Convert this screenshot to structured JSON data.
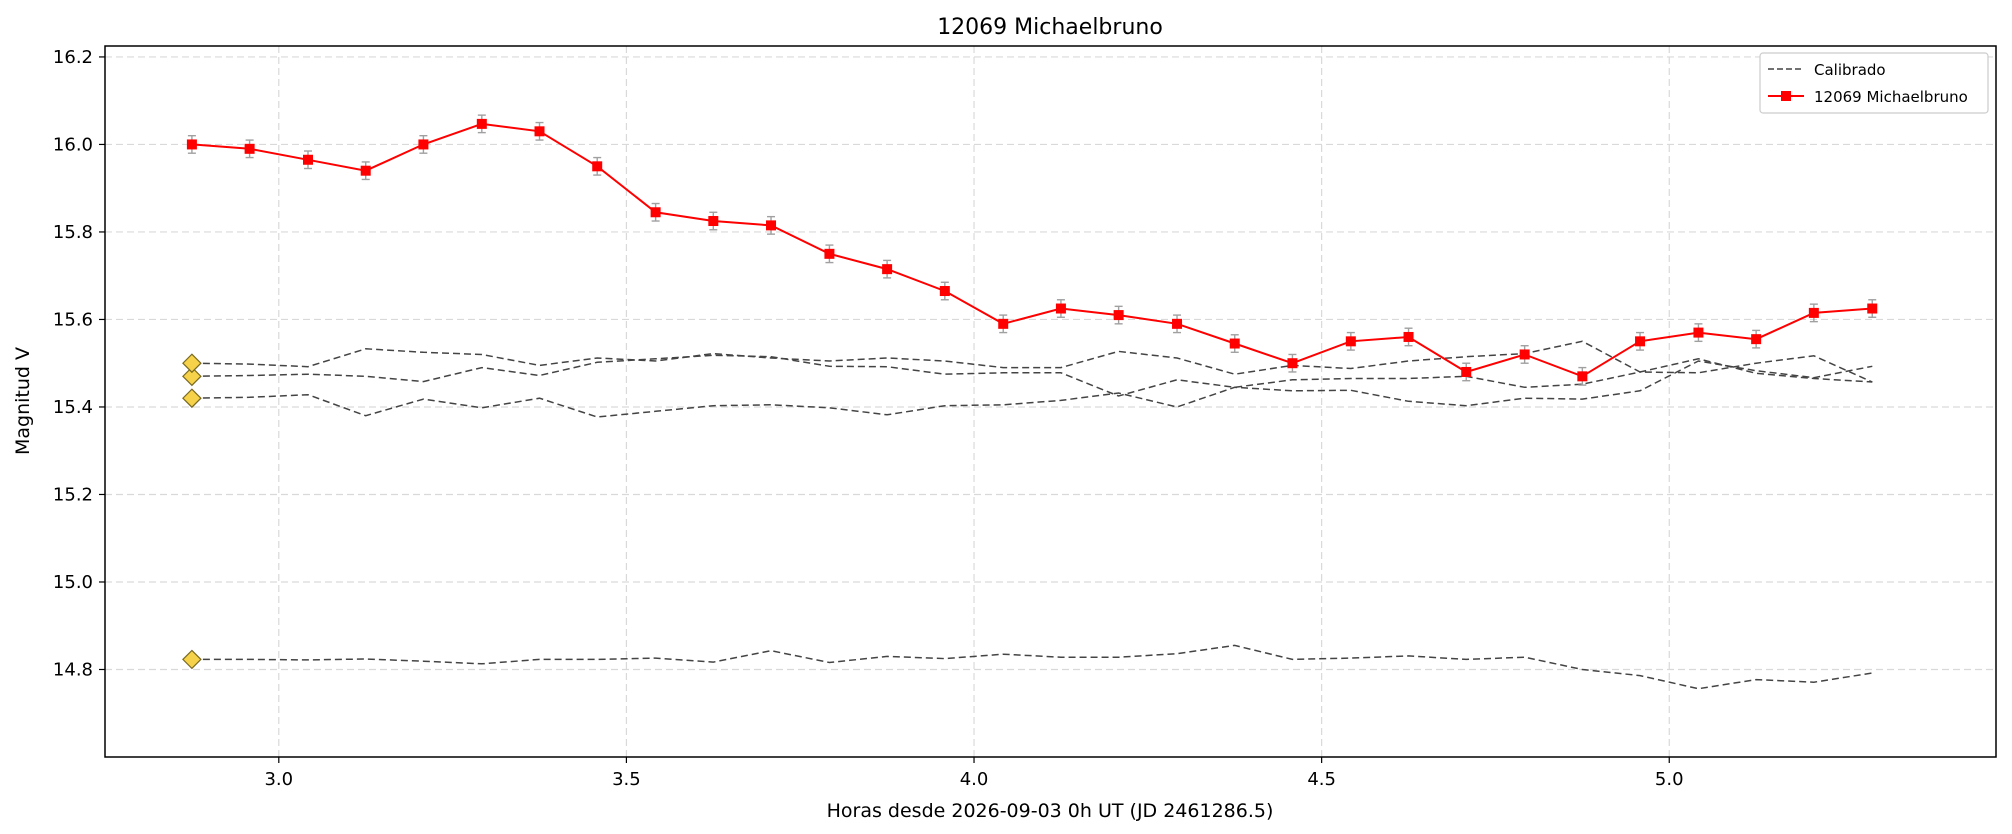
{
  "chart_data": {
    "type": "line",
    "title": "12069 Michaelbruno",
    "xlabel": "Horas desde 2026-09-03 0h UT (JD 2461286.5)",
    "ylabel": "Magnitud V",
    "xlim": [
      2.75,
      5.47
    ],
    "ylim": [
      16.225,
      14.6
    ],
    "y_inverted": true,
    "grid": true,
    "legend_position": "upper right",
    "x_ticks": [
      "3.0",
      "3.5",
      "4.0",
      "4.5",
      "5.0"
    ],
    "x_tick_values": [
      3.0,
      3.5,
      4.0,
      4.5,
      5.0
    ],
    "y_ticks": [
      "14.8",
      "15.0",
      "15.2",
      "15.4",
      "15.6",
      "15.8",
      "16.0",
      "16.2"
    ],
    "y_tick_values": [
      14.8,
      15.0,
      15.2,
      15.4,
      15.6,
      15.8,
      16.0,
      16.2
    ],
    "x": [
      2.875,
      2.958,
      3.042,
      3.125,
      3.208,
      3.292,
      3.375,
      3.458,
      3.542,
      3.625,
      3.708,
      3.792,
      3.875,
      3.958,
      4.042,
      4.125,
      4.208,
      4.292,
      4.375,
      4.458,
      4.542,
      4.625,
      4.708,
      4.792,
      4.875,
      4.958,
      5.042,
      5.125,
      5.208,
      5.292
    ],
    "series": [
      {
        "name": "12069 Michaelbruno",
        "color": "#ff0000",
        "marker": "square",
        "error": 0.02,
        "values": [
          16.0,
          15.99,
          15.965,
          15.94,
          16.0,
          16.047,
          16.03,
          15.95,
          15.845,
          15.825,
          15.815,
          15.75,
          15.715,
          15.665,
          15.59,
          15.625,
          15.61,
          15.59,
          15.545,
          15.5,
          15.55,
          15.56,
          15.48,
          15.52,
          15.47,
          15.55,
          15.57,
          15.555,
          15.615,
          15.625
        ]
      },
      {
        "name": "Calibrado",
        "color": "#444444",
        "dashed": true,
        "values": [
          14.823,
          14.823,
          14.822,
          14.824,
          14.819,
          14.813,
          14.823,
          14.823,
          14.826,
          14.817,
          14.843,
          14.816,
          14.83,
          14.825,
          14.835,
          14.828,
          14.828,
          14.836,
          14.855,
          14.823,
          14.826,
          14.831,
          14.823,
          14.828,
          14.8,
          14.786,
          14.756,
          14.777,
          14.771,
          14.792
        ]
      },
      {
        "name": "",
        "color": "#444444",
        "dashed": true,
        "values": [
          15.42,
          15.422,
          15.428,
          15.38,
          15.418,
          15.398,
          15.42,
          15.377,
          15.39,
          15.403,
          15.405,
          15.398,
          15.382,
          15.403,
          15.405,
          15.415,
          15.432,
          15.4,
          15.445,
          15.437,
          15.438,
          15.413,
          15.403,
          15.42,
          15.418,
          15.437,
          15.505,
          15.483,
          15.467,
          15.493
        ]
      },
      {
        "name": "",
        "color": "#444444",
        "dashed": true,
        "values": [
          15.47,
          15.472,
          15.475,
          15.47,
          15.458,
          15.49,
          15.472,
          15.502,
          15.51,
          15.518,
          15.515,
          15.493,
          15.492,
          15.475,
          15.478,
          15.478,
          15.425,
          15.462,
          15.445,
          15.462,
          15.465,
          15.465,
          15.47,
          15.445,
          15.452,
          15.48,
          15.51,
          15.477,
          15.465,
          15.457
        ]
      },
      {
        "name": "",
        "color": "#444444",
        "dashed": true,
        "values": [
          15.5,
          15.498,
          15.492,
          15.533,
          15.525,
          15.52,
          15.495,
          15.512,
          15.505,
          15.522,
          15.512,
          15.505,
          15.512,
          15.505,
          15.49,
          15.49,
          15.527,
          15.512,
          15.475,
          15.495,
          15.488,
          15.505,
          15.515,
          15.522,
          15.55,
          15.48,
          15.478,
          15.5,
          15.517,
          15.457
        ]
      }
    ],
    "start_markers": {
      "color": "#f5d24a",
      "marker": "diamond",
      "x": 2.875,
      "values": [
        14.823,
        15.42,
        15.47,
        15.5
      ]
    }
  }
}
